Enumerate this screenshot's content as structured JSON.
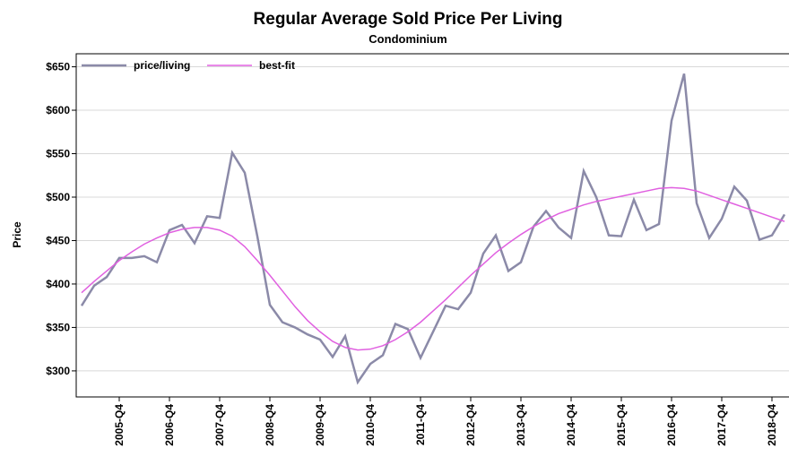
{
  "chart_data": {
    "type": "line",
    "title": "Regular Average Sold Price Per Living",
    "subtitle": "Condominium",
    "y_label": "Price",
    "categories": [
      null,
      null,
      null,
      "2005-Q4",
      null,
      null,
      null,
      "2006-Q4",
      null,
      null,
      null,
      "2007-Q4",
      null,
      null,
      null,
      "2008-Q4",
      null,
      null,
      null,
      "2009-Q4",
      null,
      null,
      null,
      "2010-Q4",
      null,
      null,
      null,
      "2011-Q4",
      null,
      null,
      null,
      "2012-Q4",
      null,
      null,
      null,
      "2013-Q4",
      null,
      null,
      null,
      "2014-Q4",
      null,
      null,
      null,
      "2015-Q4",
      null,
      null,
      null,
      "2016-Q4",
      null,
      null,
      null,
      "2017-Q4",
      null,
      null,
      null,
      "2018-Q4",
      null
    ],
    "series": [
      {
        "name": "price/living",
        "color": "#8b8aa8",
        "values": [
          375,
          398,
          408,
          430,
          430,
          432,
          425,
          462,
          468,
          447,
          478,
          476,
          551,
          528,
          455,
          376,
          356,
          350,
          342,
          336,
          316,
          340,
          287,
          308,
          318,
          354,
          348,
          315,
          345,
          375,
          371,
          390,
          435,
          456,
          415,
          425,
          466,
          484,
          465,
          453,
          530,
          500,
          456,
          455,
          497,
          462,
          469,
          588,
          642,
          493,
          453,
          475,
          512,
          496,
          451,
          456,
          480
        ]
      },
      {
        "name": "best-fit",
        "color": "#e060e0",
        "values": [
          390,
          403,
          415,
          427,
          437,
          446,
          453,
          459,
          463,
          465,
          465,
          462,
          455,
          443,
          427,
          410,
          392,
          374,
          358,
          345,
          334,
          327,
          324,
          325,
          329,
          336,
          345,
          356,
          369,
          382,
          396,
          410,
          423,
          436,
          447,
          457,
          466,
          474,
          481,
          486,
          491,
          495,
          498,
          501,
          504,
          507,
          510,
          511,
          510,
          507,
          502,
          497,
          492,
          487,
          482,
          477,
          472
        ]
      }
    ],
    "ylim": [
      270,
      665
    ],
    "yticks": [
      {
        "value": 300,
        "label": "$300"
      },
      {
        "value": 350,
        "label": "$350"
      },
      {
        "value": 400,
        "label": "$400"
      },
      {
        "value": 450,
        "label": "$450"
      },
      {
        "value": 500,
        "label": "$500"
      },
      {
        "value": 550,
        "label": "$550"
      },
      {
        "value": 600,
        "label": "$600"
      },
      {
        "value": 650,
        "label": "$650"
      }
    ],
    "grid": true,
    "legend": "top-left"
  }
}
